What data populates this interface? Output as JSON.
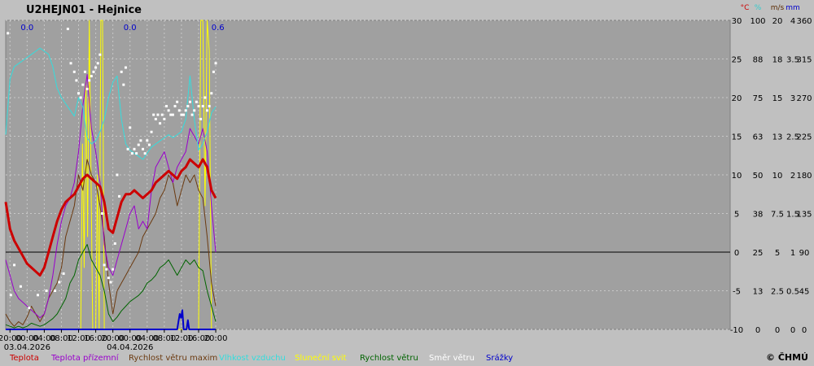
{
  "station": {
    "title": "U2HEJN01 - Hejnice"
  },
  "copyright": "© ČHMÚ",
  "colors": {
    "plot_bg": "#a0a0a0",
    "grid": "#c8c8c8",
    "teplota": "#cc0000",
    "teplota_prizemni": "#9900cc",
    "rychlost_max": "#6b3a10",
    "vlhkost": "#33dddd",
    "slunecni_svit": "#ffff00",
    "rychlost": "#006400",
    "smer": "#ffffff",
    "srazky": "#0000cc"
  },
  "chart_data": {
    "type": "line",
    "title": "U2HEJN01 - Hejnice",
    "x_unit": "hours from 03.04.2026 00:00",
    "xlim": [
      -5,
      164
    ],
    "xticks": [
      {
        "t": -4,
        "label": "20:00"
      },
      {
        "t": 0,
        "label": "00:00",
        "date": "03.04.2026"
      },
      {
        "t": 4,
        "label": "04:00"
      },
      {
        "t": 8,
        "label": "08:00"
      },
      {
        "t": 12,
        "label": "12:00"
      },
      {
        "t": 16,
        "label": "16:00"
      },
      {
        "t": 20,
        "label": "20:00"
      },
      {
        "t": 24,
        "label": "00:00",
        "date": "04.04.2026"
      },
      {
        "t": 28,
        "label": "04:00"
      },
      {
        "t": 32,
        "label": "08:00"
      },
      {
        "t": 36,
        "label": "12:00"
      },
      {
        "t": 40,
        "label": "16:00"
      },
      {
        "t": 44,
        "label": "20:00"
      }
    ],
    "axes": [
      {
        "unit": "°C",
        "color": "#cc0000",
        "ticks": [
          "30",
          "25",
          "20",
          "15",
          "10",
          "5",
          "0",
          "-5",
          "-10"
        ]
      },
      {
        "unit": "%",
        "color": "#33cccc",
        "ticks": [
          "100",
          "88",
          "75",
          "63",
          "50",
          "38",
          "25",
          "13",
          "0"
        ]
      },
      {
        "unit": "m/s",
        "color": "#5a2a00",
        "ticks": [
          "20",
          "18",
          "15",
          "13",
          "10",
          "7.5",
          "5",
          "2.5",
          "0"
        ]
      },
      {
        "unit": "mm",
        "color": "#0000cc",
        "ticks": [
          "4",
          "3.5",
          "3",
          "2.5",
          "2",
          "1.5",
          "1",
          "0.5",
          "0"
        ]
      },
      {
        "unit": "",
        "color": "#000000",
        "ticks": [
          "360",
          "315",
          "270",
          "225",
          "180",
          "135",
          "90",
          "45",
          "0"
        ]
      }
    ],
    "rain_totals": [
      {
        "t": 0,
        "label": "0.0"
      },
      {
        "t": 24,
        "label": "0.0"
      },
      {
        "t": 44.5,
        "label": "0.6"
      }
    ],
    "series": [
      {
        "name": "Teplota",
        "unit": "°C",
        "color": "#cc0000",
        "x": [
          -5,
          -4,
          -3,
          -2,
          -1,
          0,
          1,
          2,
          3,
          4,
          5,
          6,
          7,
          8,
          9,
          10,
          11,
          12,
          13,
          14,
          15,
          16,
          17,
          18,
          19,
          20,
          21,
          22,
          23,
          24,
          25,
          26,
          27,
          28,
          29,
          30,
          31,
          32,
          33,
          34,
          35,
          36,
          37,
          38,
          39,
          40,
          41,
          42,
          43,
          44
        ],
        "values": [
          6.5,
          3,
          1.5,
          0.5,
          -0.5,
          -1.5,
          -2,
          -2.5,
          -3,
          -2,
          0,
          2,
          4,
          5.5,
          6.5,
          7,
          7.5,
          8.5,
          9.5,
          10,
          9.5,
          9,
          8.5,
          6.5,
          3,
          2.5,
          4.5,
          6.5,
          7.5,
          7.5,
          8,
          7.5,
          7,
          7.5,
          8,
          9,
          9.5,
          10,
          10.5,
          10,
          9.5,
          10.5,
          11,
          12,
          11.5,
          11,
          12,
          11,
          8,
          7
        ]
      },
      {
        "name": "Teplota přízemní",
        "unit": "°C",
        "color": "#9900cc",
        "x": [
          -5,
          -4,
          -3,
          -2,
          -1,
          0,
          1,
          2,
          3,
          4,
          5,
          6,
          7,
          8,
          9,
          10,
          11,
          12,
          13,
          14,
          15,
          16,
          17,
          18,
          19,
          20,
          21,
          22,
          23,
          24,
          25,
          26,
          27,
          28,
          29,
          30,
          31,
          32,
          33,
          34,
          35,
          36,
          37,
          38,
          39,
          40,
          41,
          42,
          43,
          44
        ],
        "values": [
          -1,
          -3,
          -5,
          -6,
          -6.5,
          -7,
          -7.5,
          -8,
          -8.5,
          -8,
          -6,
          -3,
          1,
          4,
          6,
          7,
          9,
          13,
          19,
          23,
          16,
          13,
          9,
          1,
          -2,
          -3,
          -1,
          1,
          3,
          5,
          6,
          3,
          4,
          3,
          8,
          11,
          12,
          13,
          11,
          9,
          11,
          12,
          13,
          16,
          15,
          14,
          16,
          13,
          6,
          0
        ]
      },
      {
        "name": "Rychlost větru maxim",
        "unit": "m/s",
        "color": "#6b3a10",
        "x": [
          -5,
          -4,
          -3,
          -2,
          -1,
          0,
          1,
          2,
          3,
          4,
          5,
          6,
          7,
          8,
          9,
          10,
          11,
          12,
          13,
          14,
          15,
          16,
          17,
          18,
          19,
          20,
          21,
          22,
          23,
          24,
          25,
          26,
          27,
          28,
          29,
          30,
          31,
          32,
          33,
          34,
          35,
          36,
          37,
          38,
          39,
          40,
          41,
          42,
          43,
          44
        ],
        "values": [
          1,
          0.5,
          0.2,
          0.5,
          0.3,
          0.8,
          1.5,
          1,
          0.5,
          1,
          2,
          2.5,
          3,
          4,
          6,
          7,
          8,
          10,
          9,
          11,
          10,
          9.5,
          8,
          6,
          3,
          1,
          2.5,
          3,
          3.5,
          4,
          4.5,
          5,
          6,
          6.5,
          7,
          7.5,
          8.5,
          9,
          10,
          9.5,
          8,
          9,
          10,
          9.5,
          10,
          9,
          8.5,
          6,
          3,
          1.5
        ]
      },
      {
        "name": "Vlhkost vzduchu",
        "unit": "%",
        "color": "#33dddd",
        "x": [
          -5,
          -4,
          -3,
          -2,
          -1,
          0,
          1,
          2,
          3,
          4,
          5,
          6,
          7,
          8,
          9,
          10,
          11,
          12,
          13,
          14,
          15,
          16,
          17,
          18,
          19,
          20,
          21,
          22,
          23,
          24,
          25,
          26,
          27,
          28,
          29,
          30,
          31,
          32,
          33,
          34,
          35,
          36,
          37,
          38,
          39,
          40,
          41,
          42,
          43,
          44
        ],
        "values": [
          63,
          81,
          85,
          86,
          87,
          88,
          89,
          90,
          91,
          90,
          89,
          85,
          78,
          75,
          73,
          71,
          69,
          75,
          72,
          62,
          60,
          61,
          64,
          68,
          75,
          80,
          82,
          68,
          60,
          58,
          57,
          56,
          55,
          57,
          59,
          60,
          61,
          62,
          63,
          62,
          63,
          64,
          68,
          82,
          68,
          58,
          60,
          64,
          70,
          72
        ]
      },
      {
        "name": "Sluneční svit",
        "unit": "10 min",
        "color": "#ffff00",
        "x": [
          -5,
          12.5,
          12.9,
          13.3,
          13.7,
          14.1,
          14.5,
          14.9,
          15.3,
          16,
          16.4,
          16.8,
          17.2,
          17.6,
          18,
          18.5,
          40,
          40.5,
          41,
          41.5,
          42,
          42.5,
          43,
          43.5,
          44
        ],
        "values": [
          0,
          0,
          6,
          2,
          8,
          3,
          10,
          5,
          0,
          0,
          5,
          0,
          10,
          10,
          0,
          0,
          0,
          10,
          10,
          4,
          10,
          9,
          0,
          0,
          0
        ]
      },
      {
        "name": "Rychlost větru",
        "unit": "m/s",
        "color": "#006400",
        "x": [
          -5,
          -4,
          -3,
          -2,
          -1,
          0,
          1,
          2,
          3,
          4,
          5,
          6,
          7,
          8,
          9,
          10,
          11,
          12,
          13,
          14,
          15,
          16,
          17,
          18,
          19,
          20,
          21,
          22,
          23,
          24,
          25,
          26,
          27,
          28,
          29,
          30,
          31,
          32,
          33,
          34,
          35,
          36,
          37,
          38,
          39,
          40,
          41,
          42,
          43,
          44
        ],
        "values": [
          0.3,
          0.2,
          0.1,
          0.2,
          0.1,
          0.2,
          0.4,
          0.3,
          0.2,
          0.3,
          0.5,
          0.7,
          1,
          1.5,
          2,
          3,
          3.5,
          4.5,
          5,
          5.5,
          4.5,
          4,
          3.5,
          2.5,
          1,
          0.5,
          0.8,
          1.2,
          1.5,
          1.8,
          2,
          2.2,
          2.5,
          3,
          3.2,
          3.5,
          4,
          4.2,
          4.5,
          4,
          3.5,
          4,
          4.5,
          4.2,
          4.5,
          4,
          3.8,
          2.5,
          1.5,
          0.5
        ]
      },
      {
        "name": "Směr větru",
        "unit": "°",
        "color": "#ffffff",
        "x": [
          -4.5,
          -3.8,
          -3,
          -1.5,
          0.5,
          2.5,
          4.5,
          6.5,
          7.5,
          8.5,
          9.5,
          10.2,
          11,
          11.5,
          12,
          12.5,
          13,
          13.5,
          14,
          14.5,
          15,
          15.5,
          16,
          16.5,
          17,
          17.5,
          18,
          18.5,
          19,
          19.5,
          20,
          20.5,
          21,
          21.5,
          22,
          22.5,
          23,
          23.5,
          24,
          24.5,
          25,
          25.5,
          26,
          26.5,
          27,
          27.5,
          28,
          28.5,
          29,
          29.5,
          30,
          30.5,
          31,
          31.5,
          32,
          32.5,
          33,
          33.5,
          34,
          34.5,
          35,
          35.5,
          36,
          36.5,
          37,
          37.5,
          38,
          38.5,
          39,
          39.5,
          40,
          40.5,
          41,
          41.5,
          42,
          42.5,
          43,
          43.5,
          44
        ],
        "values": [
          345,
          40,
          75,
          50,
          25,
          40,
          45,
          45,
          55,
          65,
          350,
          310,
          300,
          290,
          275,
          270,
          285,
          300,
          280,
          290,
          295,
          300,
          305,
          310,
          320,
          135,
          75,
          70,
          60,
          55,
          70,
          100,
          180,
          155,
          300,
          285,
          305,
          210,
          235,
          205,
          210,
          205,
          215,
          220,
          210,
          205,
          220,
          215,
          230,
          250,
          245,
          250,
          240,
          250,
          245,
          260,
          255,
          250,
          250,
          260,
          265,
          255,
          250,
          250,
          255,
          260,
          265,
          250,
          255,
          265,
          260,
          245,
          260,
          270,
          255,
          260,
          275,
          300,
          310
        ]
      },
      {
        "name": "Srážky",
        "unit": "mm",
        "color": "#0000cc",
        "x": [
          -5,
          35,
          35.3,
          35.6,
          35.9,
          36.2,
          36.5,
          37.2,
          37.5,
          37.8,
          44
        ],
        "values": [
          0,
          0,
          0.1,
          0.2,
          0.15,
          0.25,
          0,
          0,
          0.12,
          0,
          0
        ]
      }
    ]
  }
}
